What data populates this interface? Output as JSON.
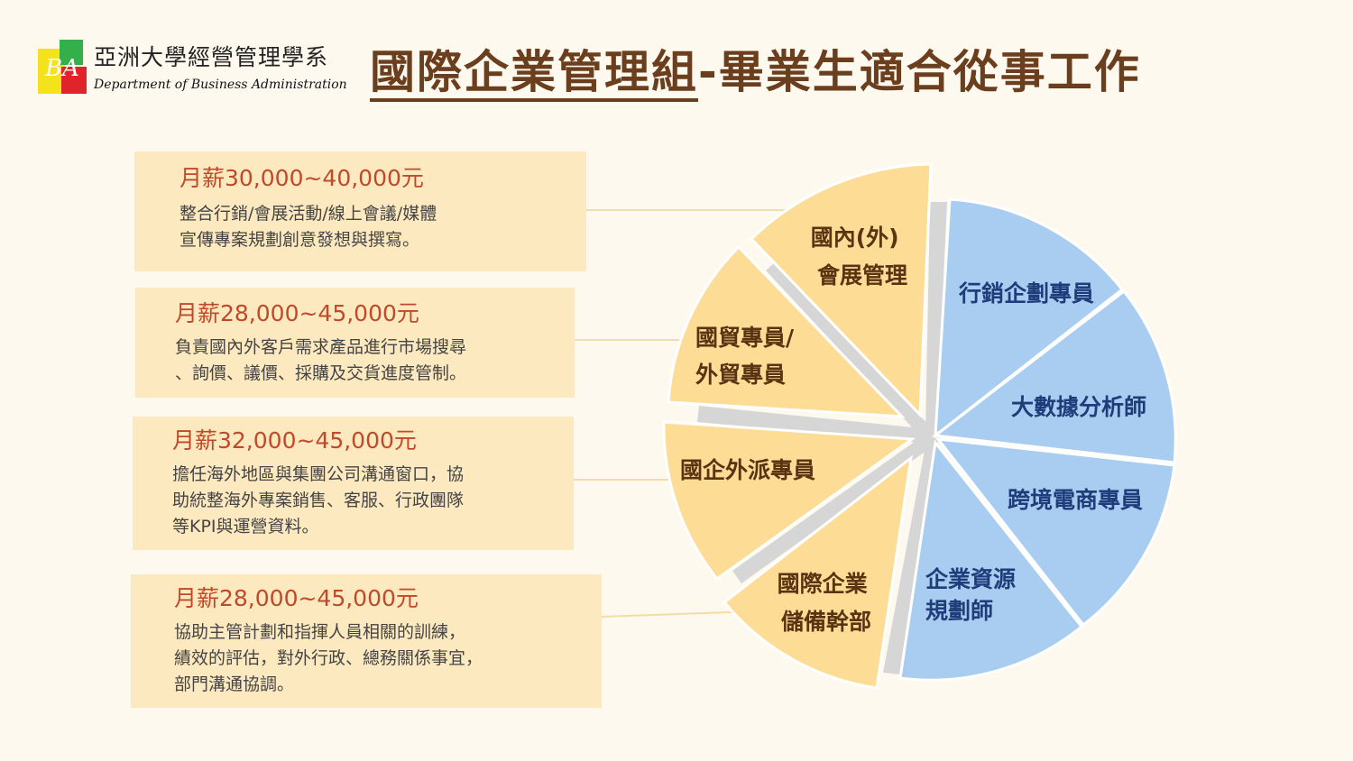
{
  "logo": {
    "name": "亞洲大學經營管理學系",
    "subtitle": "Department of Business Administration",
    "mark_text": "BA"
  },
  "title": {
    "main": "國際企業管理組",
    "rest": "-畢業生適合從事工作"
  },
  "boxes": [
    {
      "salary": "月薪30,000~40,000元",
      "lines": [
        "整合行銷/會展活動/線上會議/媒體",
        "宣傳專案規劃創意發想與撰寫。"
      ]
    },
    {
      "salary": "月薪28,000~45,000元",
      "lines": [
        "負責國內外客戶需求產品進行市場搜尋",
        "、詢價、議價、採購及交貨進度管制。"
      ]
    },
    {
      "salary": "月薪32,000~45,000元",
      "lines": [
        "擔任海外地區與集團公司溝通窗口，協",
        "助統整海外專案銷售、客服、行政團隊",
        "等KPI與運營資料。"
      ]
    },
    {
      "salary": "月薪28,000~45,000元",
      "lines": [
        "協助主管計劃和指揮人員相關的訓練，",
        "績效的評估，對外行政、總務關係事宜，",
        "部門溝通協調。"
      ]
    }
  ],
  "segments": {
    "yellow": [
      {
        "lines": [
          "國內(外)",
          "會展管理"
        ]
      },
      {
        "lines": [
          "國貿專員/",
          "外貿專員"
        ]
      },
      {
        "lines": [
          "國企外派專員"
        ]
      },
      {
        "lines": [
          "國際企業",
          "儲備幹部"
        ]
      }
    ],
    "blue": [
      {
        "lines": [
          "行銷企劃專員"
        ]
      },
      {
        "lines": [
          "大數據分析師"
        ]
      },
      {
        "lines": [
          "跨境電商專員"
        ]
      },
      {
        "lines": [
          "企業資源",
          "規劃師"
        ]
      }
    ]
  },
  "colors": {
    "background": "#fdf9ee",
    "title": "#6b3f1e",
    "salary": "#c0492a",
    "box": "#fde9c0",
    "yellow_segment": "#fddc95",
    "yellow_text": "#5a3312",
    "blue_segment": "#a9cdf0",
    "blue_text": "#1f3d7a",
    "spoke": "#d6d6d6"
  }
}
